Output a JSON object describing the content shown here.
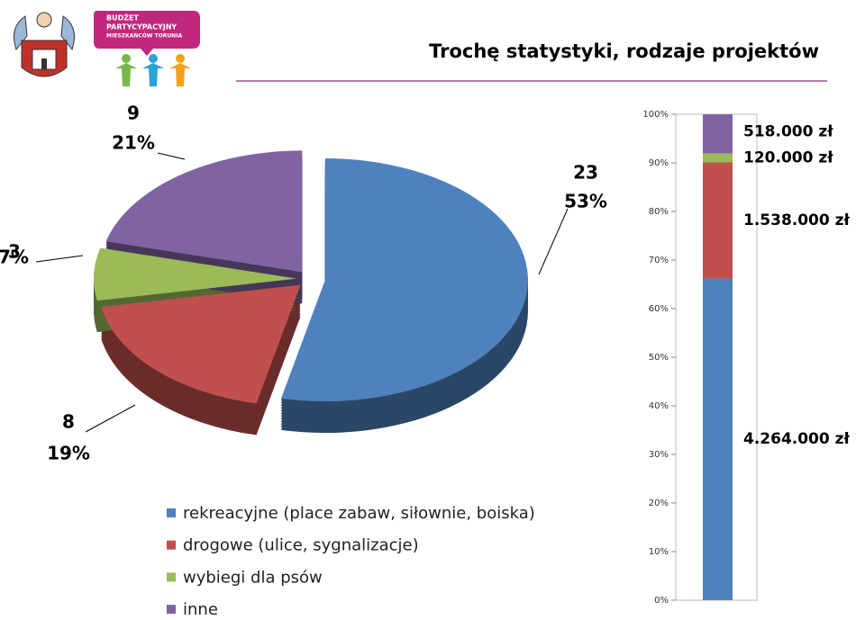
{
  "header": {
    "title": "Trochę statystyki, rodzaje projektów",
    "logo_text": [
      "BUDŻET",
      "PARTYCYPACYJNY",
      "MIESZKAŃCÓW TORUNIA"
    ]
  },
  "chart_data": [
    {
      "type": "pie",
      "categories": [
        "rekreacyjne (place zabaw, siłownie, boiska)",
        "drogowe (ulice, sygnalizacje)",
        "wybiegi dla psów",
        "inne"
      ],
      "values": [
        23,
        8,
        3,
        9
      ],
      "percent_labels": [
        "53%",
        "19%",
        "7%",
        "21%"
      ],
      "colors": [
        "#4f81bd",
        "#c0504d",
        "#9bbb59",
        "#8064a2"
      ],
      "legend": "bottom"
    },
    {
      "type": "stacked_bar_100",
      "series": [
        {
          "name": "4.264.000 zł",
          "color": "#4f81bd",
          "values": [
            4264000
          ],
          "value_labels": [
            "4.264.000 zł"
          ]
        },
        {
          "name": "1.538.000 zł",
          "color": "#c0504d",
          "values": [
            1538000
          ],
          "value_labels": [
            "1.538.000 zł"
          ]
        },
        {
          "name": "120.000 zł",
          "color": "#9bbb59",
          "values": [
            120000
          ],
          "value_labels": [
            "120.000 zł"
          ]
        },
        {
          "name": "518.000 zł",
          "color": "#8064a2",
          "values": [
            518000
          ],
          "value_labels": [
            "518.000 zł"
          ]
        }
      ],
      "ylim": [
        0,
        100
      ],
      "yticks": [
        {
          "value": 0,
          "label": "0%"
        },
        {
          "value": 10,
          "label": "10%"
        },
        {
          "value": 20,
          "label": "20%"
        },
        {
          "value": 30,
          "label": "30%"
        },
        {
          "value": 40,
          "label": "40%"
        },
        {
          "value": 50,
          "label": "50%"
        },
        {
          "value": 60,
          "label": "60%"
        },
        {
          "value": 70,
          "label": "70%"
        },
        {
          "value": 80,
          "label": "80%"
        },
        {
          "value": 90,
          "label": "90%"
        },
        {
          "value": 100,
          "label": "100%"
        }
      ]
    }
  ]
}
